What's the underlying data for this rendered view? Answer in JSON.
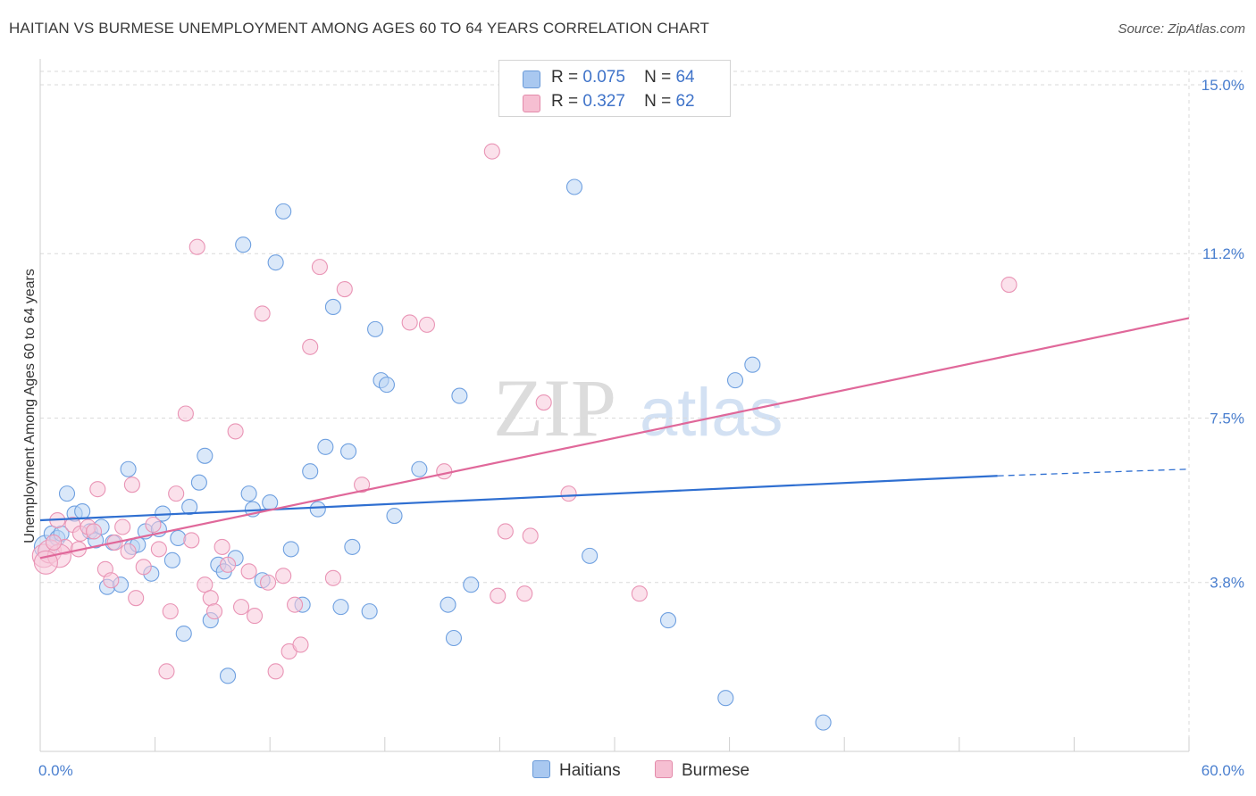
{
  "title": "HAITIAN VS BURMESE UNEMPLOYMENT AMONG AGES 60 TO 64 YEARS CORRELATION CHART",
  "source": "Source: ZipAtlas.com",
  "watermark": {
    "zip": "ZIP",
    "atlas": "atlas"
  },
  "legend": {
    "rows": [
      {
        "r_label": "R =",
        "r_value": "0.075",
        "n_label": "N =",
        "n_value": "64",
        "color": "#a9c8f0",
        "border": "#6a9ad8"
      },
      {
        "r_label": "R =",
        "r_value": "0.327",
        "n_label": "N =",
        "n_value": "62",
        "color": "#f6bfd2",
        "border": "#e38aaa"
      }
    ]
  },
  "bottom_legend": {
    "series1": "Haitians",
    "series2": "Burmese"
  },
  "chart_data": {
    "type": "scatter",
    "title": "HAITIAN VS BURMESE UNEMPLOYMENT AMONG AGES 60 TO 64 YEARS CORRELATION CHART",
    "xlabel": "",
    "ylabel": "Unemployment Among Ages 60 to 64 years",
    "xlim": [
      0,
      60
    ],
    "ylim": [
      0,
      15.3
    ],
    "x_tick_labels": [
      "0.0%",
      "60.0%"
    ],
    "y_ticks": [
      3.8,
      7.5,
      11.2,
      15.0
    ],
    "y_tick_labels": [
      "3.8%",
      "7.5%",
      "11.2%",
      "15.0%"
    ],
    "grid": true,
    "legend_position": "top-center",
    "series": [
      {
        "name": "Haitians",
        "color": "#6fa0e0",
        "fill": "#bcd5f4",
        "trend": {
          "x": [
            0,
            50
          ],
          "y": [
            5.2,
            6.2
          ],
          "dash_to": [
            60,
            6.35
          ],
          "color": "#2f6fd1"
        },
        "points": [
          [
            0.3,
            4.6
          ],
          [
            0.6,
            4.9
          ],
          [
            0.9,
            4.8
          ],
          [
            1.1,
            4.9
          ],
          [
            1.4,
            5.8
          ],
          [
            1.8,
            5.35
          ],
          [
            2.2,
            5.4
          ],
          [
            2.6,
            4.95
          ],
          [
            2.9,
            4.75
          ],
          [
            3.2,
            5.05
          ],
          [
            3.5,
            3.7
          ],
          [
            3.8,
            4.7
          ],
          [
            4.2,
            3.75
          ],
          [
            4.6,
            6.35
          ],
          [
            4.8,
            4.6
          ],
          [
            5.1,
            4.65
          ],
          [
            5.5,
            4.95
          ],
          [
            5.8,
            4.0
          ],
          [
            6.2,
            5.0
          ],
          [
            6.4,
            5.35
          ],
          [
            6.9,
            4.3
          ],
          [
            7.2,
            4.8
          ],
          [
            7.5,
            2.65
          ],
          [
            7.8,
            5.5
          ],
          [
            8.3,
            6.05
          ],
          [
            8.6,
            6.65
          ],
          [
            8.9,
            2.95
          ],
          [
            9.3,
            4.2
          ],
          [
            9.6,
            4.05
          ],
          [
            9.8,
            1.7
          ],
          [
            10.2,
            4.35
          ],
          [
            10.6,
            11.4
          ],
          [
            10.9,
            5.8
          ],
          [
            11.1,
            5.45
          ],
          [
            11.6,
            3.85
          ],
          [
            12.0,
            5.6
          ],
          [
            12.3,
            11.0
          ],
          [
            12.7,
            12.15
          ],
          [
            13.1,
            4.55
          ],
          [
            13.7,
            3.3
          ],
          [
            14.1,
            6.3
          ],
          [
            14.5,
            5.45
          ],
          [
            14.9,
            6.85
          ],
          [
            15.3,
            10.0
          ],
          [
            15.7,
            3.25
          ],
          [
            16.1,
            6.75
          ],
          [
            16.3,
            4.6
          ],
          [
            17.2,
            3.15
          ],
          [
            17.5,
            9.5
          ],
          [
            17.8,
            8.35
          ],
          [
            18.1,
            8.25
          ],
          [
            18.5,
            5.3
          ],
          [
            19.8,
            6.35
          ],
          [
            21.3,
            3.3
          ],
          [
            21.6,
            2.55
          ],
          [
            21.9,
            8.0
          ],
          [
            22.5,
            3.75
          ],
          [
            27.9,
            12.7
          ],
          [
            28.7,
            4.4
          ],
          [
            32.8,
            2.95
          ],
          [
            35.8,
            1.2
          ],
          [
            36.3,
            8.35
          ],
          [
            37.2,
            8.7
          ],
          [
            40.9,
            0.65
          ]
        ]
      },
      {
        "name": "Burmese",
        "color": "#e994b5",
        "fill": "#f8c9da",
        "trend": {
          "x": [
            0,
            60
          ],
          "y": [
            4.35,
            9.75
          ],
          "color": "#e0689a"
        },
        "points": [
          [
            0.2,
            4.4
          ],
          [
            0.5,
            4.5
          ],
          [
            0.9,
            5.2
          ],
          [
            1.3,
            4.6
          ],
          [
            1.7,
            5.1
          ],
          [
            2.1,
            4.9
          ],
          [
            2.5,
            5.05
          ],
          [
            2.8,
            4.95
          ],
          [
            3.0,
            5.9
          ],
          [
            3.4,
            4.1
          ],
          [
            3.7,
            3.85
          ],
          [
            3.9,
            4.7
          ],
          [
            4.3,
            5.05
          ],
          [
            4.6,
            4.5
          ],
          [
            4.8,
            6.0
          ],
          [
            5.0,
            3.45
          ],
          [
            5.4,
            4.15
          ],
          [
            5.9,
            5.1
          ],
          [
            6.2,
            4.55
          ],
          [
            6.6,
            1.8
          ],
          [
            6.8,
            3.15
          ],
          [
            7.1,
            5.8
          ],
          [
            7.6,
            7.6
          ],
          [
            7.9,
            4.75
          ],
          [
            8.2,
            11.35
          ],
          [
            8.6,
            3.75
          ],
          [
            8.9,
            3.45
          ],
          [
            9.1,
            3.15
          ],
          [
            9.5,
            4.6
          ],
          [
            9.8,
            4.2
          ],
          [
            10.2,
            7.2
          ],
          [
            10.5,
            3.25
          ],
          [
            10.9,
            4.05
          ],
          [
            11.2,
            3.05
          ],
          [
            11.6,
            9.85
          ],
          [
            11.9,
            3.8
          ],
          [
            12.3,
            1.8
          ],
          [
            12.7,
            3.95
          ],
          [
            13.0,
            2.25
          ],
          [
            13.3,
            3.3
          ],
          [
            13.6,
            2.4
          ],
          [
            14.1,
            9.1
          ],
          [
            14.6,
            10.9
          ],
          [
            15.3,
            3.9
          ],
          [
            15.9,
            10.4
          ],
          [
            16.8,
            6.0
          ],
          [
            19.3,
            9.65
          ],
          [
            20.2,
            9.6
          ],
          [
            21.1,
            6.3
          ],
          [
            23.6,
            13.5
          ],
          [
            23.9,
            3.5
          ],
          [
            24.3,
            4.95
          ],
          [
            25.3,
            3.55
          ],
          [
            25.6,
            4.85
          ],
          [
            26.3,
            7.85
          ],
          [
            27.6,
            5.8
          ],
          [
            31.3,
            3.55
          ],
          [
            50.6,
            10.5
          ],
          [
            1.0,
            4.4
          ],
          [
            2.0,
            4.55
          ],
          [
            0.3,
            4.25
          ],
          [
            0.7,
            4.7
          ]
        ]
      }
    ]
  }
}
